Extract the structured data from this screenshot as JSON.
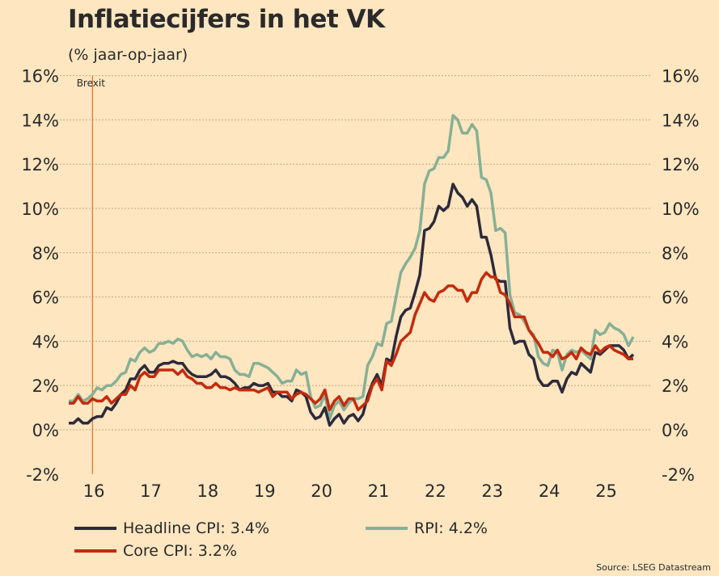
{
  "chart_data": {
    "type": "line",
    "title": "Inflatiecijfers in het VK",
    "subtitle": "(% jaar-op-jaar)",
    "x_start": "2016-01",
    "frequency": "monthly",
    "ylim": [
      -2,
      16
    ],
    "yticks": [
      -2,
      0,
      2,
      4,
      6,
      8,
      10,
      12,
      14,
      16
    ],
    "ytick_labels": [
      "-2%",
      "0%",
      "2%",
      "4%",
      "6%",
      "8%",
      "10%",
      "12%",
      "14%",
      "16%"
    ],
    "xticks": [
      2016,
      2017,
      2018,
      2019,
      2020,
      2021,
      2022,
      2023,
      2024,
      2025
    ],
    "xtick_labels": [
      "16",
      "17",
      "18",
      "19",
      "20",
      "21",
      "22",
      "23",
      "24",
      "25"
    ],
    "grid": true,
    "annotation": {
      "label": "Brexit",
      "x": "2016-06"
    },
    "series": [
      {
        "name": "Headline CPI",
        "legend": "Headline CPI: 3.4%",
        "color": "#2e2a3a",
        "values": [
          0.3,
          0.3,
          0.5,
          0.3,
          0.3,
          0.5,
          0.6,
          0.6,
          1.0,
          0.9,
          1.2,
          1.6,
          1.8,
          2.3,
          2.3,
          2.7,
          2.9,
          2.6,
          2.6,
          2.9,
          3.0,
          3.0,
          3.1,
          3.0,
          3.0,
          2.7,
          2.5,
          2.4,
          2.4,
          2.4,
          2.5,
          2.7,
          2.4,
          2.4,
          2.3,
          2.1,
          1.8,
          1.9,
          1.9,
          2.1,
          2.0,
          2.0,
          2.1,
          1.7,
          1.7,
          1.5,
          1.5,
          1.3,
          1.8,
          1.7,
          1.5,
          0.8,
          0.5,
          0.6,
          1.0,
          0.2,
          0.5,
          0.7,
          0.3,
          0.6,
          0.7,
          0.4,
          0.7,
          1.5,
          2.1,
          2.5,
          2.0,
          3.2,
          3.1,
          4.2,
          5.1,
          5.4,
          5.5,
          6.2,
          7.0,
          9.0,
          9.1,
          9.4,
          10.1,
          9.9,
          10.1,
          11.1,
          10.7,
          10.5,
          10.1,
          10.4,
          10.1,
          8.7,
          8.7,
          7.9,
          6.8,
          6.7,
          6.7,
          4.6,
          3.9,
          4.0,
          4.0,
          3.4,
          3.2,
          2.3,
          2.0,
          2.0,
          2.2,
          2.2,
          1.7,
          2.3,
          2.6,
          2.5,
          3.0,
          2.8,
          2.6,
          3.5,
          3.4,
          3.6,
          3.8,
          3.8,
          3.8,
          3.6,
          3.2,
          3.4
        ]
      },
      {
        "name": "RPI",
        "legend": "RPI: 4.2%",
        "color": "#86b095",
        "values": [
          1.3,
          1.3,
          1.6,
          1.3,
          1.4,
          1.6,
          1.9,
          1.8,
          2.0,
          2.0,
          2.2,
          2.5,
          2.6,
          3.2,
          3.1,
          3.5,
          3.7,
          3.5,
          3.6,
          3.9,
          3.9,
          4.0,
          3.9,
          4.1,
          4.0,
          3.6,
          3.3,
          3.4,
          3.3,
          3.4,
          3.2,
          3.5,
          3.3,
          3.3,
          3.2,
          2.7,
          2.5,
          2.5,
          2.4,
          3.0,
          3.0,
          2.9,
          2.8,
          2.6,
          2.4,
          2.1,
          2.2,
          2.2,
          2.7,
          2.5,
          2.6,
          1.5,
          1.0,
          1.1,
          1.6,
          0.5,
          1.1,
          1.3,
          0.9,
          1.2,
          1.4,
          1.4,
          1.5,
          2.9,
          3.3,
          3.9,
          3.8,
          4.8,
          4.9,
          6.0,
          7.1,
          7.5,
          7.8,
          8.2,
          9.0,
          11.1,
          11.7,
          11.8,
          12.3,
          12.3,
          12.6,
          14.2,
          14.0,
          13.4,
          13.4,
          13.8,
          13.5,
          11.4,
          11.3,
          10.7,
          9.0,
          9.1,
          8.9,
          6.1,
          5.3,
          5.2,
          4.9,
          4.5,
          4.3,
          3.3,
          3.0,
          2.9,
          3.6,
          3.5,
          2.7,
          3.4,
          3.6,
          3.5,
          3.6,
          3.4,
          3.2,
          4.5,
          4.3,
          4.4,
          4.8,
          4.6,
          4.5,
          4.3,
          3.8,
          4.2
        ]
      },
      {
        "name": "Core CPI",
        "legend": "Core CPI: 3.2%",
        "color": "#c42a0c",
        "values": [
          1.2,
          1.2,
          1.5,
          1.2,
          1.2,
          1.4,
          1.3,
          1.3,
          1.5,
          1.2,
          1.4,
          1.6,
          1.6,
          2.0,
          1.8,
          2.4,
          2.6,
          2.4,
          2.4,
          2.7,
          2.7,
          2.7,
          2.7,
          2.5,
          2.7,
          2.4,
          2.3,
          2.1,
          2.1,
          1.9,
          1.9,
          2.1,
          1.9,
          1.9,
          1.8,
          1.9,
          1.8,
          1.8,
          1.8,
          1.8,
          1.7,
          1.8,
          1.9,
          1.5,
          1.7,
          1.7,
          1.7,
          1.4,
          1.6,
          1.7,
          1.6,
          1.4,
          1.2,
          1.4,
          1.8,
          0.9,
          1.3,
          1.5,
          1.1,
          1.4,
          1.4,
          0.9,
          1.1,
          1.3,
          2.0,
          2.3,
          1.8,
          3.1,
          2.9,
          3.4,
          4.0,
          4.2,
          4.4,
          5.2,
          5.7,
          6.2,
          5.9,
          5.8,
          6.2,
          6.3,
          6.5,
          6.5,
          6.3,
          6.3,
          5.8,
          6.2,
          6.2,
          6.8,
          7.1,
          6.9,
          6.9,
          6.2,
          6.1,
          5.7,
          5.1,
          5.1,
          5.1,
          4.5,
          4.2,
          3.9,
          3.5,
          3.5,
          3.3,
          3.6,
          3.2,
          3.3,
          3.5,
          3.2,
          3.7,
          3.5,
          3.4,
          3.8,
          3.5,
          3.7,
          3.8,
          3.6,
          3.5,
          3.4,
          3.2,
          3.2
        ]
      }
    ],
    "source": "Source: LSEG Datastream"
  }
}
